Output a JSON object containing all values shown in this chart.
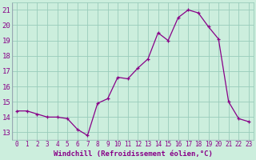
{
  "x": [
    0,
    1,
    2,
    3,
    4,
    5,
    6,
    7,
    8,
    9,
    10,
    11,
    12,
    13,
    14,
    15,
    16,
    17,
    18,
    19,
    20,
    21,
    22,
    23
  ],
  "y": [
    14.4,
    14.4,
    14.2,
    14.0,
    14.0,
    13.9,
    13.2,
    12.8,
    14.9,
    15.2,
    16.6,
    16.5,
    17.2,
    17.8,
    19.5,
    19.0,
    20.5,
    21.0,
    20.8,
    19.9,
    19.1,
    15.0,
    13.9,
    13.7
  ],
  "xlim": [
    -0.5,
    23.5
  ],
  "ylim": [
    12.5,
    21.5
  ],
  "yticks": [
    13,
    14,
    15,
    16,
    17,
    18,
    19,
    20,
    21
  ],
  "xticks": [
    0,
    1,
    2,
    3,
    4,
    5,
    6,
    7,
    8,
    9,
    10,
    11,
    12,
    13,
    14,
    15,
    16,
    17,
    18,
    19,
    20,
    21,
    22,
    23
  ],
  "xlabel": "Windchill (Refroidissement éolien,°C)",
  "line_color": "#880088",
  "marker": "+",
  "bg_color": "#cceedd",
  "grid_color": "#99ccbb",
  "tick_color": "#880088",
  "label_color": "#880088",
  "xlabel_fontsize": 6.5,
  "ytick_fontsize": 6.5,
  "xtick_fontsize": 5.5
}
